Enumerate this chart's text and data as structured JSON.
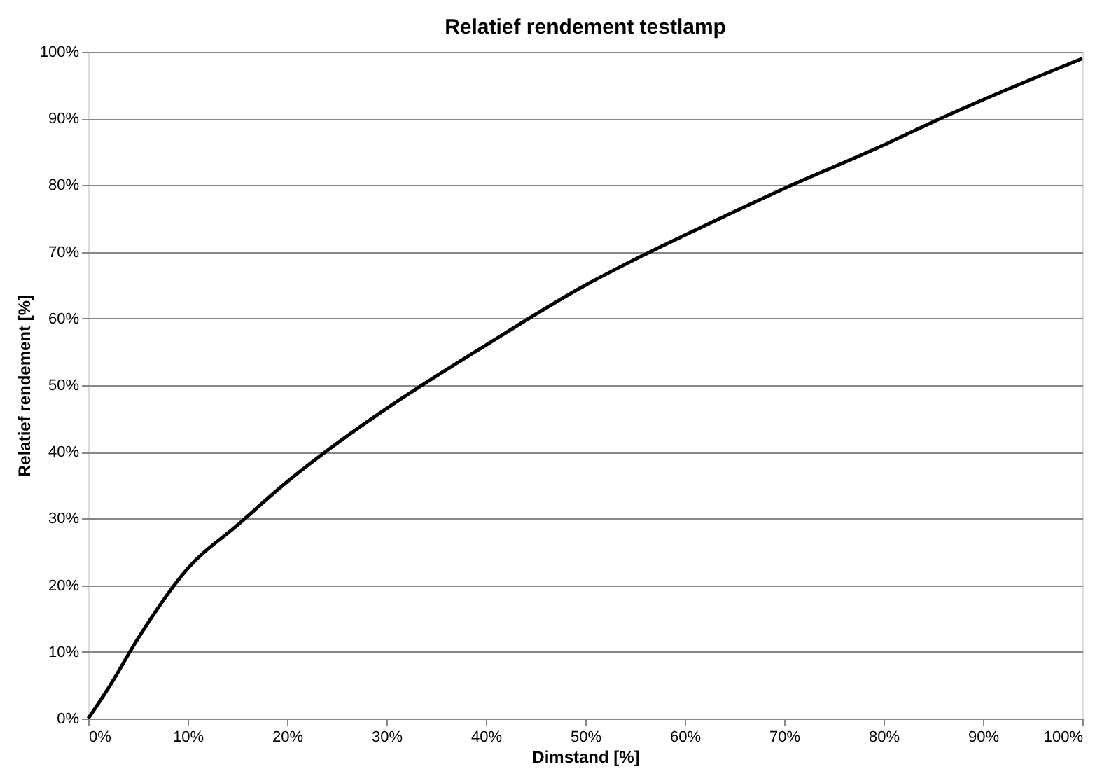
{
  "chart_data": {
    "type": "line",
    "title": "Relatief rendement testlamp",
    "xlabel": "Dimstand [%]",
    "ylabel": "Relatief rendement [%]",
    "series": [
      {
        "color": "#000000",
        "x": [
          0,
          2,
          5,
          10,
          15,
          20,
          25.5,
          30,
          40,
          50,
          54.5,
          60,
          70,
          80,
          85,
          90,
          100
        ],
        "values": [
          0,
          4.5,
          12,
          22.5,
          29,
          35.5,
          41.8,
          46.5,
          56,
          65,
          68.5,
          72.5,
          79.5,
          86,
          89.5,
          92.8,
          99
        ]
      }
    ],
    "xlim": [
      0,
      100
    ],
    "ylim": [
      0,
      100
    ],
    "xticks": [
      {
        "value": 0,
        "label": "0%"
      },
      {
        "value": 10,
        "label": "10%"
      },
      {
        "value": 20,
        "label": "20%"
      },
      {
        "value": 30,
        "label": "30%"
      },
      {
        "value": 40,
        "label": "40%"
      },
      {
        "value": 50,
        "label": "50%"
      },
      {
        "value": 60,
        "label": "60%"
      },
      {
        "value": 70,
        "label": "70%"
      },
      {
        "value": 80,
        "label": "80%"
      },
      {
        "value": 90,
        "label": "90%"
      },
      {
        "value": 100,
        "label": "100%"
      }
    ],
    "yticks": [
      {
        "value": 0,
        "label": "0%"
      },
      {
        "value": 10,
        "label": "10%"
      },
      {
        "value": 20,
        "label": "20%"
      },
      {
        "value": 30,
        "label": "30%"
      },
      {
        "value": 40,
        "label": "40%"
      },
      {
        "value": 50,
        "label": "50%"
      },
      {
        "value": 60,
        "label": "60%"
      },
      {
        "value": 70,
        "label": "70%"
      },
      {
        "value": 80,
        "label": "80%"
      },
      {
        "value": 90,
        "label": "90%"
      },
      {
        "value": 100,
        "label": "100%"
      }
    ],
    "grid": "y",
    "line_style": "solid"
  }
}
